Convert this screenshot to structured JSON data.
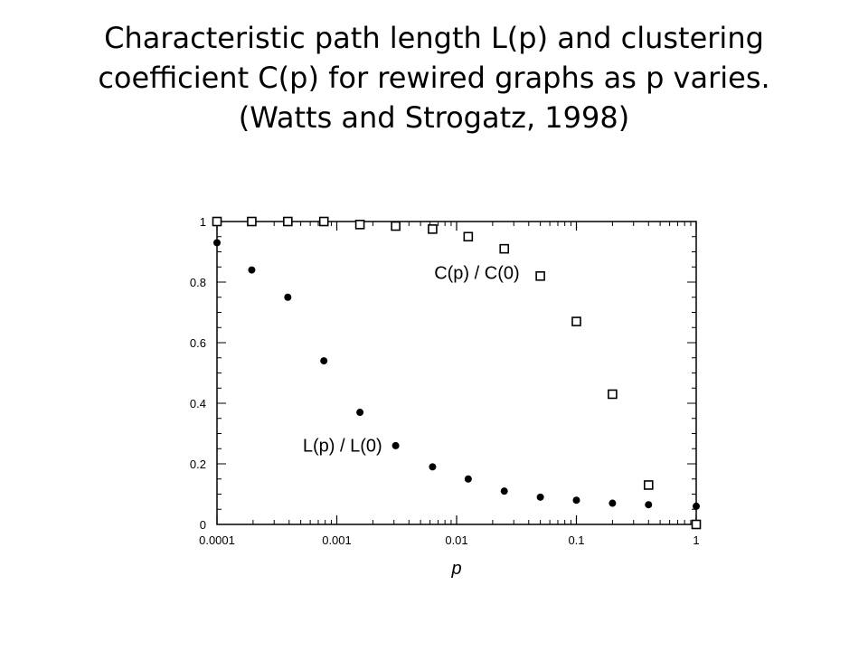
{
  "title_lines": [
    "Characteristic path length L(p) and clustering",
    "coefficient C(p) for rewired graphs as p varies.",
    "(Watts and Strogatz, 1998)"
  ],
  "chart_data": {
    "type": "scatter",
    "xlabel": "p",
    "ylabel": "",
    "xscale": "log",
    "xlim": [
      0.0001,
      1
    ],
    "ylim": [
      0,
      1
    ],
    "x_ticks": [
      {
        "value": 0.0001,
        "label": "0.0001"
      },
      {
        "value": 0.001,
        "label": "0.001"
      },
      {
        "value": 0.01,
        "label": "0.01"
      },
      {
        "value": 0.1,
        "label": "0.1"
      },
      {
        "value": 1,
        "label": "1"
      }
    ],
    "y_ticks": [
      {
        "value": 0,
        "label": "0"
      },
      {
        "value": 0.2,
        "label": "0.2"
      },
      {
        "value": 0.4,
        "label": "0.4"
      },
      {
        "value": 0.6,
        "label": "0.6"
      },
      {
        "value": 0.8,
        "label": "0.8"
      },
      {
        "value": 1,
        "label": "1"
      }
    ],
    "series": [
      {
        "name": "C(p) / C(0)",
        "marker": "open-square",
        "x": [
          0.0001,
          0.000195,
          0.00039,
          0.00078,
          0.00156,
          0.0031,
          0.0063,
          0.0125,
          0.025,
          0.05,
          0.1,
          0.2,
          0.4,
          1
        ],
        "y": [
          1.0,
          1.0,
          1.0,
          1.0,
          0.99,
          0.985,
          0.975,
          0.95,
          0.91,
          0.82,
          0.67,
          0.43,
          0.13,
          0.0
        ]
      },
      {
        "name": "L(p) / L(0)",
        "marker": "filled-circle",
        "x": [
          0.0001,
          0.000195,
          0.00039,
          0.00078,
          0.00156,
          0.0031,
          0.0063,
          0.0125,
          0.025,
          0.05,
          0.1,
          0.2,
          0.4,
          1
        ],
        "y": [
          0.93,
          0.84,
          0.75,
          0.54,
          0.37,
          0.26,
          0.19,
          0.15,
          0.11,
          0.09,
          0.08,
          0.07,
          0.065,
          0.06
        ]
      }
    ],
    "annotations": [
      {
        "text": "C(p) / C(0)",
        "x": 0.0065,
        "y": 0.81
      },
      {
        "text": "L(p) / L(0)",
        "x": 0.00052,
        "y": 0.24
      }
    ],
    "grid": false,
    "colors": {
      "marker": "#000000",
      "axes": "#000000"
    }
  }
}
